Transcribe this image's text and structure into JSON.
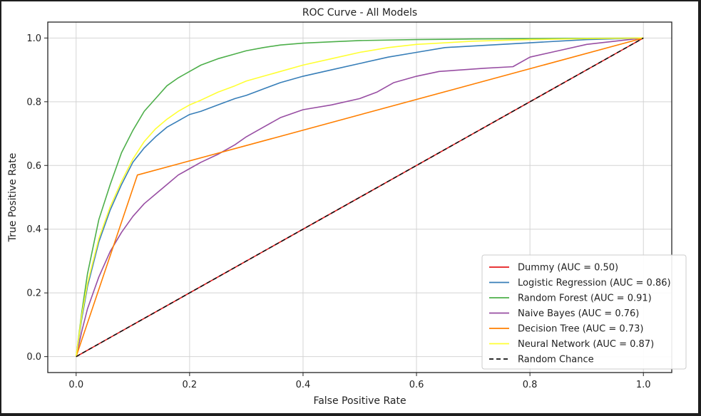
{
  "chart_data": {
    "type": "line",
    "title": "ROC Curve - All Models",
    "xlabel": "False Positive Rate",
    "ylabel": "True Positive Rate",
    "xlim": [
      -0.05,
      1.05
    ],
    "ylim": [
      -0.05,
      1.05
    ],
    "xticks": [
      0.0,
      0.2,
      0.4,
      0.6,
      0.8,
      1.0
    ],
    "yticks": [
      0.0,
      0.2,
      0.4,
      0.6,
      0.8,
      1.0
    ],
    "xtick_labels": [
      "0.0",
      "0.2",
      "0.4",
      "0.6",
      "0.8",
      "1.0"
    ],
    "ytick_labels": [
      "0.0",
      "0.2",
      "0.4",
      "0.6",
      "0.8",
      "1.0"
    ],
    "grid": true,
    "legend_position": "lower-right",
    "series": [
      {
        "name": "Dummy (AUC = 0.50)",
        "color": "#e41a1c",
        "dash": "solid",
        "x": [
          0.0,
          1.0
        ],
        "y": [
          0.0,
          1.0
        ]
      },
      {
        "name": "Logistic Regression (AUC = 0.86)",
        "color": "#377eb8",
        "dash": "solid",
        "x": [
          0.0,
          0.01,
          0.02,
          0.04,
          0.06,
          0.08,
          0.1,
          0.12,
          0.14,
          0.16,
          0.18,
          0.2,
          0.22,
          0.25,
          0.28,
          0.3,
          0.33,
          0.36,
          0.4,
          0.45,
          0.5,
          0.55,
          0.6,
          0.65,
          0.7,
          0.8,
          0.9,
          1.0
        ],
        "y": [
          0.0,
          0.12,
          0.22,
          0.36,
          0.46,
          0.54,
          0.61,
          0.655,
          0.69,
          0.72,
          0.74,
          0.76,
          0.77,
          0.79,
          0.81,
          0.82,
          0.84,
          0.86,
          0.88,
          0.9,
          0.92,
          0.94,
          0.955,
          0.97,
          0.975,
          0.985,
          0.995,
          1.0
        ]
      },
      {
        "name": "Random Forest (AUC = 0.91)",
        "color": "#4daf4a",
        "dash": "solid",
        "x": [
          0.0,
          0.01,
          0.02,
          0.04,
          0.06,
          0.08,
          0.1,
          0.12,
          0.14,
          0.16,
          0.18,
          0.2,
          0.22,
          0.25,
          0.28,
          0.3,
          0.33,
          0.36,
          0.4,
          0.45,
          0.5,
          0.6,
          0.7,
          0.8,
          0.9,
          1.0
        ],
        "y": [
          0.0,
          0.14,
          0.26,
          0.43,
          0.54,
          0.64,
          0.71,
          0.77,
          0.81,
          0.85,
          0.875,
          0.895,
          0.915,
          0.935,
          0.95,
          0.96,
          0.97,
          0.978,
          0.984,
          0.988,
          0.992,
          0.995,
          0.997,
          0.998,
          0.999,
          1.0
        ]
      },
      {
        "name": "Naive Bayes (AUC = 0.76)",
        "color": "#984ea3",
        "dash": "solid",
        "x": [
          0.0,
          0.01,
          0.02,
          0.04,
          0.06,
          0.08,
          0.1,
          0.12,
          0.14,
          0.16,
          0.18,
          0.2,
          0.22,
          0.25,
          0.28,
          0.3,
          0.33,
          0.36,
          0.4,
          0.45,
          0.5,
          0.53,
          0.56,
          0.6,
          0.64,
          0.68,
          0.72,
          0.77,
          0.8,
          0.85,
          0.9,
          0.95,
          1.0
        ],
        "y": [
          0.0,
          0.08,
          0.15,
          0.25,
          0.33,
          0.39,
          0.44,
          0.48,
          0.51,
          0.54,
          0.57,
          0.59,
          0.61,
          0.635,
          0.665,
          0.69,
          0.72,
          0.75,
          0.775,
          0.79,
          0.81,
          0.83,
          0.86,
          0.88,
          0.895,
          0.9,
          0.905,
          0.91,
          0.94,
          0.96,
          0.98,
          0.99,
          1.0
        ]
      },
      {
        "name": "Decision Tree (AUC = 0.73)",
        "color": "#ff7f00",
        "dash": "solid",
        "x": [
          0.0,
          0.108,
          1.0
        ],
        "y": [
          0.0,
          0.57,
          1.0
        ]
      },
      {
        "name": "Neural Network (AUC = 0.87)",
        "color": "#ffff33",
        "dash": "solid",
        "x": [
          0.0,
          0.01,
          0.02,
          0.04,
          0.06,
          0.08,
          0.1,
          0.12,
          0.14,
          0.16,
          0.18,
          0.2,
          0.22,
          0.25,
          0.28,
          0.3,
          0.33,
          0.36,
          0.4,
          0.45,
          0.5,
          0.55,
          0.6,
          0.7,
          0.8,
          0.9,
          1.0
        ],
        "y": [
          0.0,
          0.13,
          0.23,
          0.37,
          0.47,
          0.55,
          0.62,
          0.675,
          0.715,
          0.745,
          0.77,
          0.79,
          0.805,
          0.83,
          0.85,
          0.865,
          0.88,
          0.895,
          0.915,
          0.935,
          0.955,
          0.97,
          0.98,
          0.99,
          0.995,
          0.998,
          1.0
        ]
      },
      {
        "name": "Random Chance",
        "color": "#111111",
        "dash": "dashed",
        "x": [
          0.0,
          1.0
        ],
        "y": [
          0.0,
          1.0
        ]
      }
    ]
  }
}
